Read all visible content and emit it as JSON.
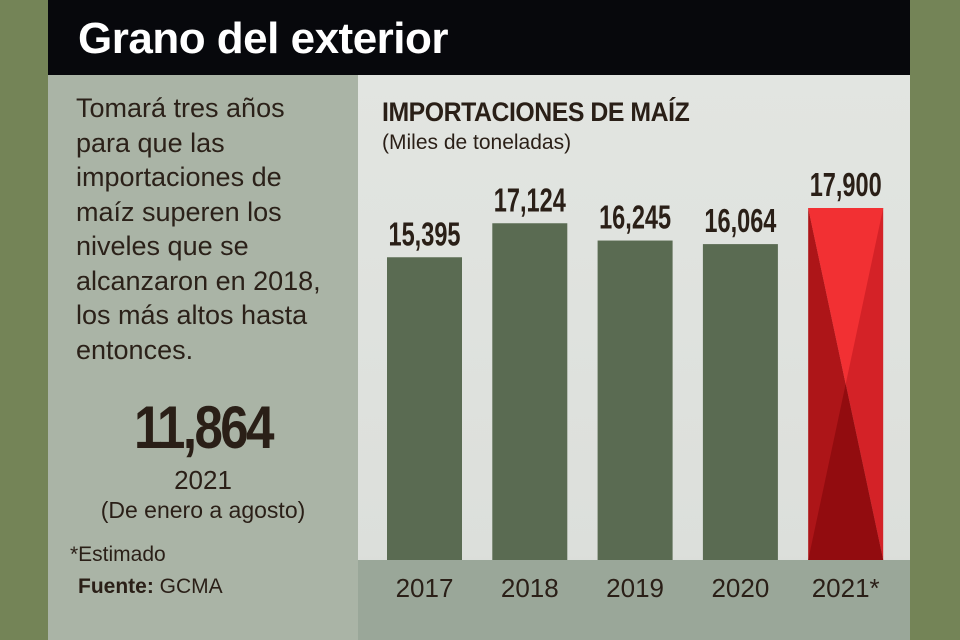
{
  "title": "Grano del exterior",
  "blurb": "Tomará tres años para que las importaciones de maíz superen los niveles que se alcanzaron en 2018, los más altos hasta entonces.",
  "highlight": {
    "value": "11,864",
    "year": "2021",
    "period": "(De enero a agosto)"
  },
  "note": "*Estimado",
  "source": {
    "label": "Fuente:",
    "value": "GCMA"
  },
  "colors": {
    "bar": "#5a6b52",
    "estimate": "#e0262a",
    "frame": "#748457"
  },
  "chart_data": {
    "type": "bar",
    "title": "IMPORTACIONES DE MAÍZ",
    "subtitle": "(Miles de toneladas)",
    "categories": [
      "2017",
      "2018",
      "2019",
      "2020",
      "2021*"
    ],
    "values": [
      15395,
      17124,
      16245,
      16064,
      17900
    ],
    "labels": [
      "15,395",
      "17,124",
      "16,245",
      "16,064",
      "17,900"
    ],
    "estimated": [
      false,
      false,
      false,
      false,
      true
    ],
    "ylim": [
      0,
      17900
    ],
    "grid": false
  }
}
